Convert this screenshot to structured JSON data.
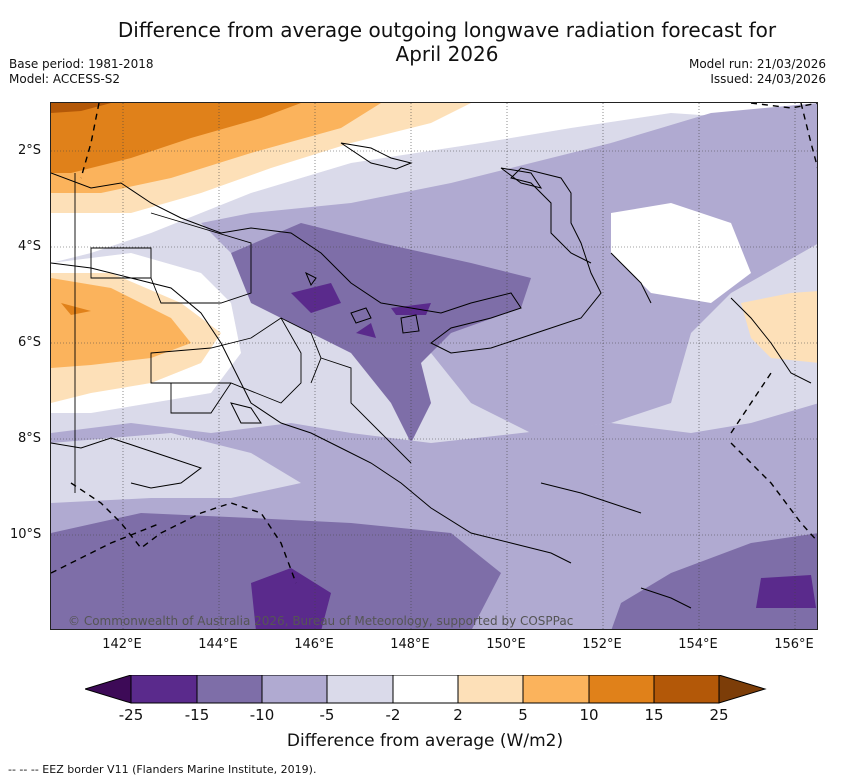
{
  "title_line1": "Difference from average outgoing longwave radiation forecast for",
  "title_line2": "April 2026",
  "base_period": "Base period: 1981-2018",
  "model": "Model: ACCESS-S2",
  "model_run": "Model run: 21/03/2026",
  "issued": "Issued: 24/03/2026",
  "lat_labels": [
    "2°S",
    "4°S",
    "6°S",
    "8°S",
    "10°S"
  ],
  "lon_labels": [
    "142°E",
    "144°E",
    "146°E",
    "148°E",
    "150°E",
    "152°E",
    "154°E",
    "156°E"
  ],
  "copyright": "© Commonwealth of Australia 2026, Bureau of Meteorology, supported by COSPPac",
  "colorbar": {
    "label": "Difference from average (W/m2)",
    "ticks": [
      "-25",
      "-15",
      "-10",
      "-5",
      "-2",
      "2",
      "5",
      "10",
      "15",
      "25"
    ],
    "colors": {
      "lt_-25": "#3d0a57",
      "-25_-15": "#5a2a8c",
      "-15_-10": "#7e6ea8",
      "-10_-5": "#b0aad1",
      "-5_-2": "#dadaea",
      "-2_2": "#ffffff",
      "2_5": "#fde0b8",
      "5_10": "#fbb35c",
      "10_15": "#e0811a",
      "15_25": "#b35808",
      "gt_25": "#7c3d08"
    }
  },
  "footer": "--  --  -- EEZ border V11 (Flanders Marine Institute, 2019)."
}
